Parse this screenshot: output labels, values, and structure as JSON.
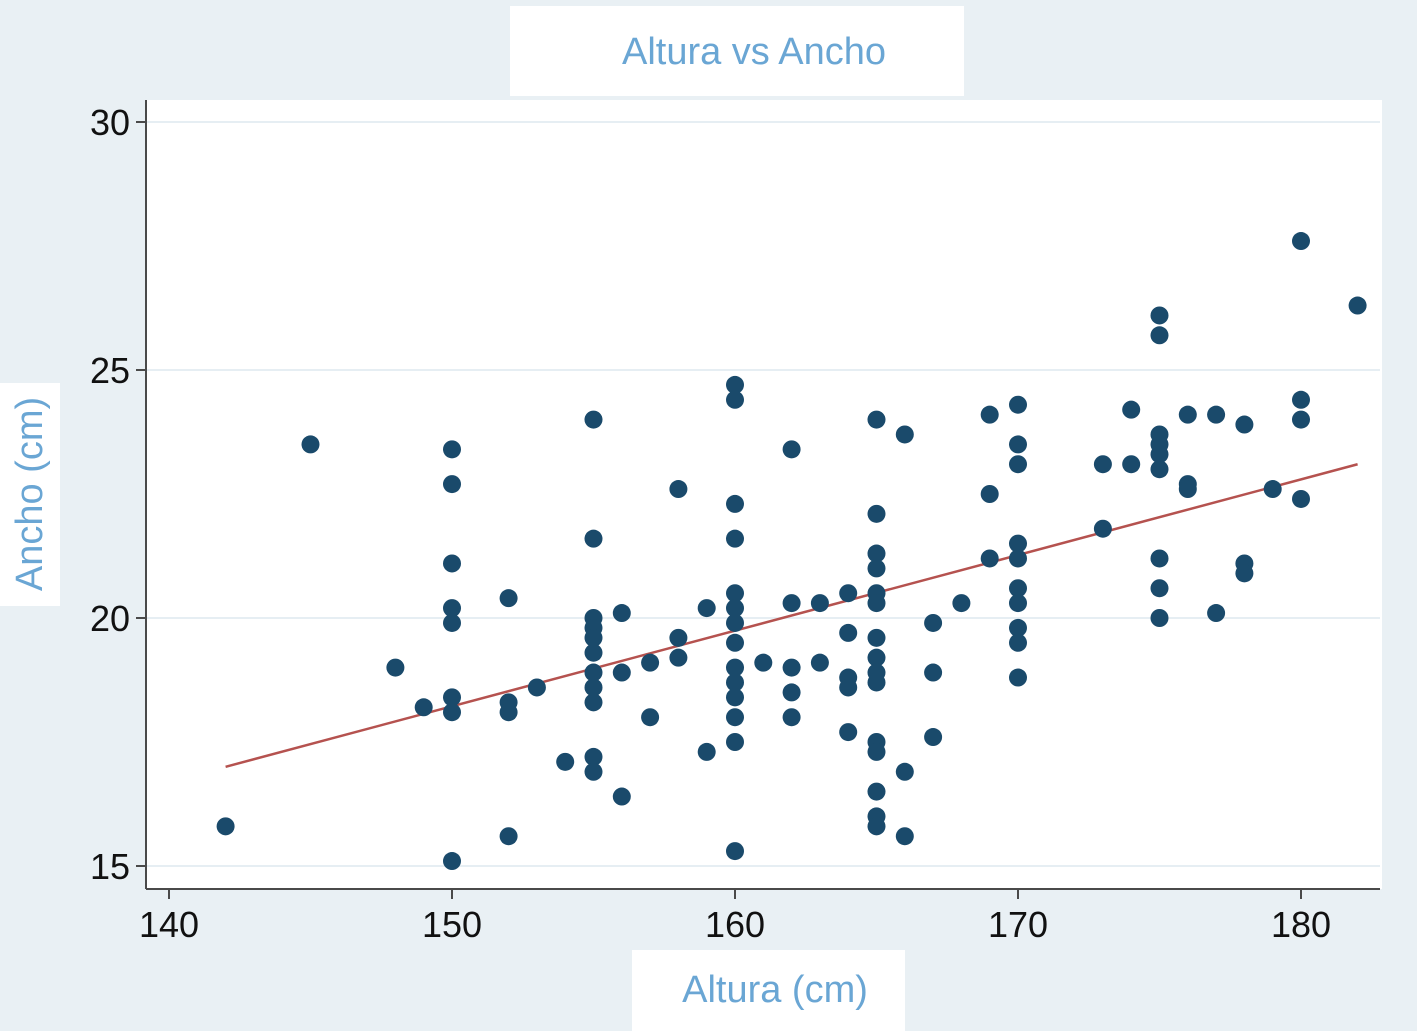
{
  "chart_data": {
    "type": "scatter",
    "title": "Altura vs Ancho",
    "xlabel": "Altura (cm)",
    "ylabel": "Ancho (cm)",
    "xlim": [
      140,
      182
    ],
    "ylim": [
      15,
      30
    ],
    "x_ticks": [
      "140",
      "150",
      "160",
      "170",
      "180"
    ],
    "y_ticks": [
      "15",
      "20",
      "25",
      "30"
    ],
    "grid": "horizontal",
    "colors": {
      "background": "#e9f0f4",
      "plot_area": "#ffffff",
      "points": "#1a4a6b",
      "fit_line": "#b5524f",
      "label_text": "#6aa6d4",
      "gridline": "#e6eef3"
    },
    "series": [
      {
        "values": [
          [
            142,
            15.8
          ],
          [
            145,
            23.5
          ],
          [
            148,
            19.0
          ],
          [
            149,
            18.2
          ],
          [
            150,
            23.4
          ],
          [
            150,
            22.7
          ],
          [
            150,
            21.1
          ],
          [
            150,
            20.2
          ],
          [
            150,
            19.9
          ],
          [
            150,
            18.4
          ],
          [
            150,
            18.1
          ],
          [
            150,
            15.1
          ],
          [
            152,
            20.4
          ],
          [
            152,
            18.3
          ],
          [
            152,
            18.1
          ],
          [
            152,
            15.6
          ],
          [
            153,
            18.6
          ],
          [
            154,
            17.1
          ],
          [
            155,
            24.0
          ],
          [
            155,
            21.6
          ],
          [
            155,
            20.0
          ],
          [
            155,
            19.8
          ],
          [
            155,
            19.6
          ],
          [
            155,
            19.3
          ],
          [
            155,
            18.9
          ],
          [
            155,
            18.6
          ],
          [
            155,
            18.3
          ],
          [
            155,
            17.2
          ],
          [
            155,
            16.9
          ],
          [
            156,
            20.1
          ],
          [
            156,
            18.9
          ],
          [
            156,
            16.4
          ],
          [
            157,
            19.1
          ],
          [
            157,
            18.0
          ],
          [
            158,
            22.6
          ],
          [
            158,
            19.6
          ],
          [
            158,
            19.2
          ],
          [
            159,
            20.2
          ],
          [
            159,
            17.3
          ],
          [
            160,
            24.7
          ],
          [
            160,
            24.4
          ],
          [
            160,
            22.3
          ],
          [
            160,
            21.6
          ],
          [
            160,
            20.5
          ],
          [
            160,
            20.2
          ],
          [
            160,
            19.9
          ],
          [
            160,
            19.5
          ],
          [
            160,
            19.0
          ],
          [
            160,
            18.7
          ],
          [
            160,
            18.4
          ],
          [
            160,
            18.0
          ],
          [
            160,
            17.5
          ],
          [
            160,
            15.3
          ],
          [
            161,
            19.1
          ],
          [
            162,
            23.4
          ],
          [
            162,
            20.3
          ],
          [
            162,
            19.0
          ],
          [
            162,
            18.5
          ],
          [
            162,
            18.0
          ],
          [
            163,
            20.3
          ],
          [
            163,
            19.1
          ],
          [
            164,
            20.5
          ],
          [
            164,
            19.7
          ],
          [
            164,
            18.8
          ],
          [
            164,
            18.6
          ],
          [
            164,
            17.7
          ],
          [
            165,
            24.0
          ],
          [
            165,
            22.1
          ],
          [
            165,
            21.3
          ],
          [
            165,
            21.0
          ],
          [
            165,
            20.5
          ],
          [
            165,
            20.3
          ],
          [
            165,
            19.6
          ],
          [
            165,
            19.2
          ],
          [
            165,
            18.9
          ],
          [
            165,
            18.7
          ],
          [
            165,
            17.5
          ],
          [
            165,
            17.3
          ],
          [
            165,
            16.5
          ],
          [
            165,
            16.0
          ],
          [
            165,
            15.8
          ],
          [
            166,
            23.7
          ],
          [
            166,
            16.9
          ],
          [
            166,
            15.6
          ],
          [
            167,
            19.9
          ],
          [
            167,
            18.9
          ],
          [
            167,
            17.6
          ],
          [
            168,
            20.3
          ],
          [
            169,
            24.1
          ],
          [
            169,
            22.5
          ],
          [
            169,
            21.2
          ],
          [
            170,
            24.3
          ],
          [
            170,
            23.5
          ],
          [
            170,
            23.1
          ],
          [
            170,
            21.5
          ],
          [
            170,
            21.2
          ],
          [
            170,
            20.6
          ],
          [
            170,
            20.3
          ],
          [
            170,
            19.8
          ],
          [
            170,
            19.5
          ],
          [
            170,
            18.8
          ],
          [
            173,
            23.1
          ],
          [
            173,
            21.8
          ],
          [
            174,
            24.2
          ],
          [
            174,
            23.1
          ],
          [
            175,
            26.1
          ],
          [
            175,
            25.7
          ],
          [
            175,
            23.7
          ],
          [
            175,
            23.5
          ],
          [
            175,
            23.3
          ],
          [
            175,
            23.0
          ],
          [
            175,
            21.2
          ],
          [
            175,
            20.6
          ],
          [
            175,
            20.0
          ],
          [
            176,
            24.1
          ],
          [
            176,
            22.7
          ],
          [
            176,
            22.6
          ],
          [
            177,
            24.1
          ],
          [
            177,
            20.1
          ],
          [
            178,
            23.9
          ],
          [
            178,
            21.1
          ],
          [
            178,
            20.9
          ],
          [
            179,
            22.6
          ],
          [
            180,
            27.6
          ],
          [
            180,
            24.4
          ],
          [
            180,
            24.0
          ],
          [
            180,
            22.4
          ],
          [
            182,
            26.3
          ]
        ]
      }
    ],
    "fit_line": [
      [
        142,
        17.0
      ],
      [
        182,
        23.1
      ]
    ]
  }
}
